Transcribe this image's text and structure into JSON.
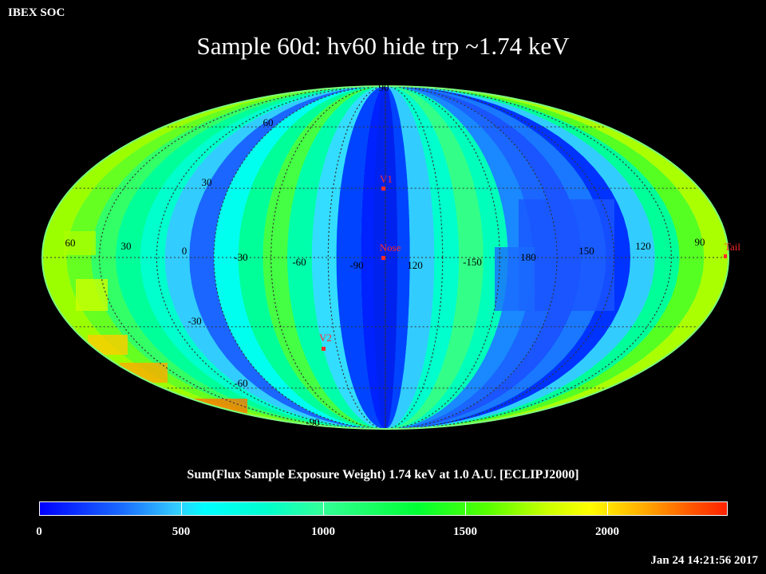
{
  "header": {
    "org": "IBEX SOC",
    "title": "Sample 60d: hv60 hide trp ~1.74 keV"
  },
  "map": {
    "projection": "mollweide",
    "lat_labels": [
      "90",
      "60",
      "30",
      "-30",
      "-60",
      "-90"
    ],
    "lon_labels": [
      "60",
      "30",
      "0",
      "-30",
      "-60",
      "-90",
      "120",
      "-150",
      "180",
      "150",
      "120",
      "90"
    ],
    "markers": [
      {
        "label": "V1",
        "lon": 255,
        "lat": 34
      },
      {
        "label": "Nose",
        "lon": 255,
        "lat": 5
      },
      {
        "label": "V2",
        "lon": 289,
        "lat": -32
      },
      {
        "label": "Tail",
        "lon": 75,
        "lat": -5
      }
    ],
    "colors": {
      "marker": "#ff2a2a",
      "grid": "#333333",
      "lat_label": "#000000",
      "lon_label": "#000000"
    }
  },
  "colorbar": {
    "title": "Sum(Flux Sample Exposure Weight)  1.74 keV at 1.0 A.U. [ECLIPJ2000]",
    "ticks": [
      "0",
      "500",
      "1000",
      "1500",
      "2000"
    ],
    "range": [
      0,
      2420
    ]
  },
  "footer": {
    "timestamp": "Jan 24 14:21:56 2017"
  }
}
